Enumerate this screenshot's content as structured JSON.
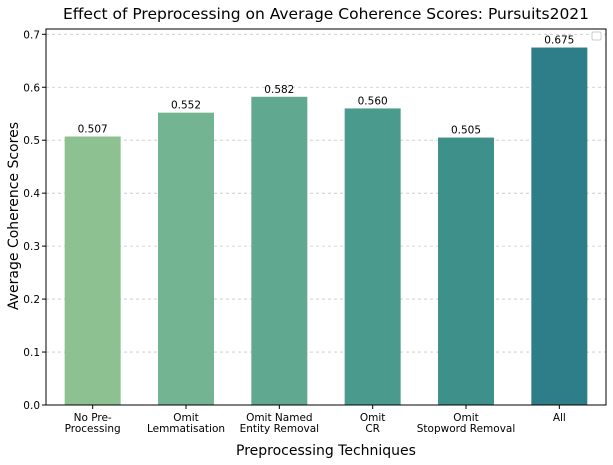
{
  "chart_data": {
    "type": "bar",
    "title": "Effect of Preprocessing on Average Coherence Scores: Pursuits2021",
    "xlabel": "Preprocessing Techniques",
    "ylabel": "Average Coherence Scores",
    "categories": [
      [
        "No Pre-",
        "Processing"
      ],
      [
        "Omit",
        "Lemmatisation"
      ],
      [
        "Omit Named",
        "Entity Removal"
      ],
      [
        "Omit",
        "CR"
      ],
      [
        "Omit",
        "Stopword Removal"
      ],
      [
        "All"
      ]
    ],
    "values": [
      0.507,
      0.552,
      0.582,
      0.56,
      0.505,
      0.675
    ],
    "value_labels": [
      "0.507",
      "0.552",
      "0.582",
      "0.560",
      "0.505",
      "0.675"
    ],
    "colors": [
      "#8dc191",
      "#73b592",
      "#60a990",
      "#4b9a8e",
      "#3e918b",
      "#2d7e88"
    ],
    "ylim": [
      0,
      0.71
    ],
    "yticks": [
      0.0,
      0.1,
      0.2,
      0.3,
      0.4,
      0.5,
      0.6,
      0.7
    ],
    "ytick_labels": [
      "0.0",
      "0.1",
      "0.2",
      "0.3",
      "0.4",
      "0.5",
      "0.6",
      "0.7"
    ],
    "grid": "horizontal dashed",
    "legend": "top-right, empty"
  }
}
